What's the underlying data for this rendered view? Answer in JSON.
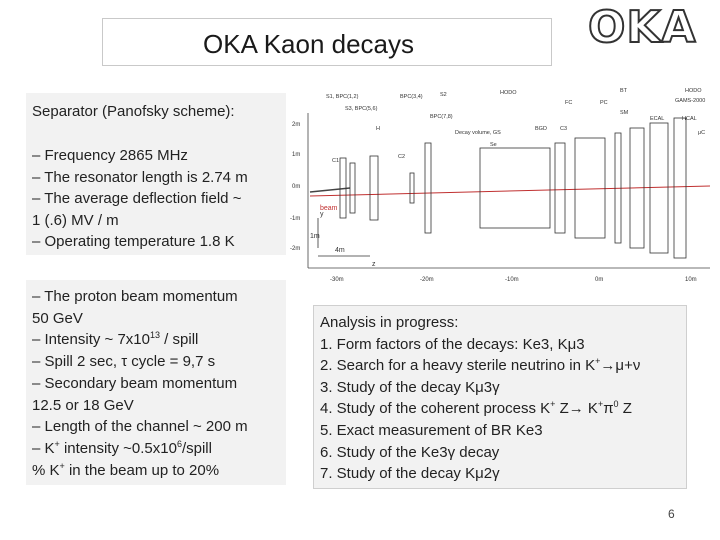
{
  "slide": {
    "title": "OKA    Kaon decays",
    "logo": "OKA",
    "page_number": "6"
  },
  "separator": {
    "heading": "Separator (Panofsky scheme):",
    "lines": [
      "– Frequency 2865 MHz",
      "– The resonator length is 2.74 m",
      " – The average deflection field  ~",
      "1 (.6) MV / m",
      " – Operating temperature 1.8 K"
    ]
  },
  "beam": {
    "l1": "– The proton beam momentum",
    "l2": "50 GeV",
    "l3_pre": " – Intensity ~ 7x10",
    "l3_sup": "13",
    "l3_post": " / spill",
    "l4": " –  Spill  2 sec, τ cycle = 9,7 s",
    "l5": " – Secondary beam momentum",
    "l6": "12.5 or 18 GeV",
    "l7": " – Length of the channel ~ 200 m",
    "l8_pre": " – K",
    "l8_sup1": "+",
    "l8_mid": " intensity ~0.5x10",
    "l8_sup2": "6",
    "l8_post": "/spill",
    "l9_pre": "% K",
    "l9_sup": "+",
    "l9_post": " in the beam up to 20%"
  },
  "analysis": {
    "heading": "Analysis in progress:",
    "i1": "1. Form factors of the decays: Ke3, Kμ3",
    "i2_pre": "2. Search for a heavy sterile neutrino in K",
    "i2_sup": "+",
    "i2_post": "→μ+ν",
    "i3": "3. Study of the decay Kμ3γ",
    "i4_pre": "4. Study of the coherent process K",
    "i4_sup1": "+",
    "i4_mid1": " Z→ K",
    "i4_sup2": "+",
    "i4_mid2": "π",
    "i4_sup3": "0",
    "i4_post": " Z",
    "i5": "5. Exact measurement of BR Ke3",
    "i6": "6. Study of the Ke3γ decay",
    "i7": "7. Study of the decay Kμ2γ"
  },
  "diagram": {
    "top_labels": [
      "S1, BPC(1,2)",
      "BPC(3,4)",
      "S2",
      "S3, BPC(5,6)",
      "BPC(7,8)",
      "HODO",
      "BT",
      "HODO",
      "FC",
      "PC",
      "SM",
      "GAMS-2000",
      "HCAL",
      "ECAL",
      "μC",
      "BGD",
      "Decay volume, GS",
      "H",
      "C1",
      "C2",
      "C3",
      "Se"
    ],
    "beam_label": "beam",
    "axis_y": "y",
    "axis_z": "z",
    "scale_v": "1m",
    "scale_h": "4m",
    "left_ticks": [
      "2m",
      "1m",
      "0m",
      "-1m",
      "-2m"
    ],
    "bottom_ticks": [
      "-30m",
      "-20m",
      "-10m",
      "0m",
      "10m"
    ]
  }
}
